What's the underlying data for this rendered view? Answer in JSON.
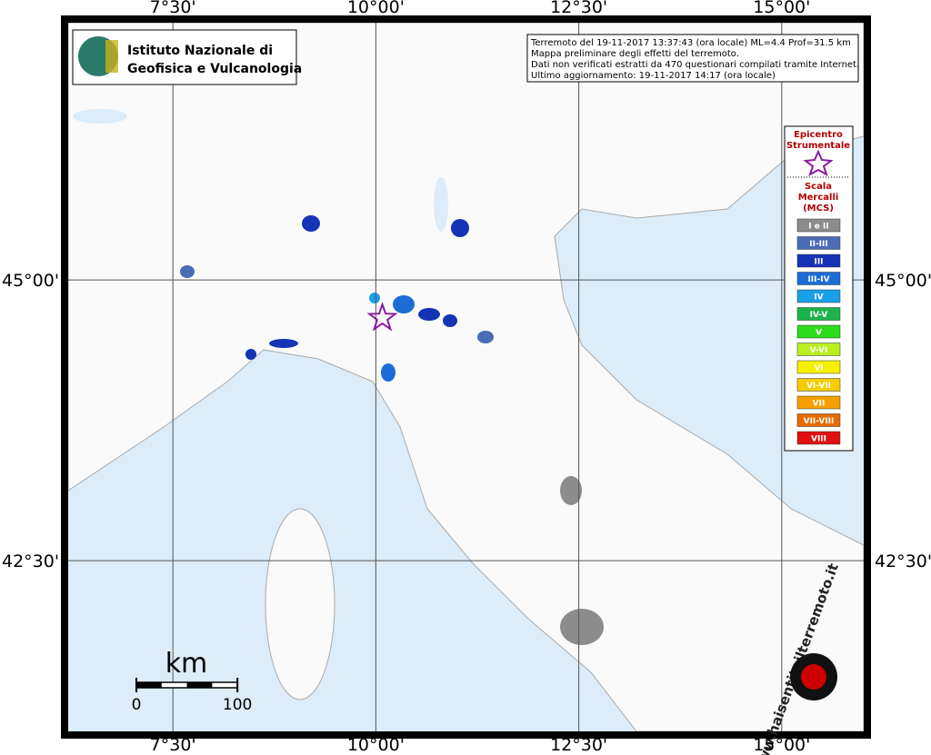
{
  "header": {
    "logo_lines": [
      "Istituto Nazionale di",
      "Geofisica e Vulcanologia"
    ]
  },
  "info": [
    "Terremoto del 19-11-2017 13:37:43 (ora locale) ML=4.4 Prof=31.5 km",
    "Mappa preliminare degli effetti del terremoto.",
    "Dati non verificati estratti da 470 questionari compilati tramite Internet.",
    "Ultimo aggiornamento: 19-11-2017 14:17 (ora locale)"
  ],
  "map": {
    "lon_range": [
      6.21,
      16.01
    ],
    "lat_range": [
      40.98,
      47.29
    ],
    "lon_ticks": [
      {
        "value": 7.5,
        "label": "7°30'"
      },
      {
        "value": 10,
        "label": "10°00'"
      },
      {
        "value": 12.5,
        "label": "12°30'"
      },
      {
        "value": 15,
        "label": "15°00'"
      }
    ],
    "lat_ticks": [
      {
        "value": 45,
        "label": "45°00'"
      },
      {
        "value": 42.5,
        "label": "42°30'"
      }
    ],
    "epicenter": {
      "lon": 10.08,
      "lat": 44.66,
      "color": "#8a1aa0"
    }
  },
  "legend": {
    "epicenter_title": [
      "Epicentro",
      "Strumentale"
    ],
    "scale_title": [
      "Scala",
      "Mercalli",
      "(MCS)"
    ],
    "levels": [
      {
        "label": "I e II",
        "color": "#8c8c8c"
      },
      {
        "label": "II-III",
        "color": "#4a6cb5"
      },
      {
        "label": "III",
        "color": "#1533b5"
      },
      {
        "label": "III-IV",
        "color": "#1c6cd6"
      },
      {
        "label": "IV",
        "color": "#18a0e8"
      },
      {
        "label": "IV-V",
        "color": "#1db34a"
      },
      {
        "label": "V",
        "color": "#2cdc1a"
      },
      {
        "label": "V-VI",
        "color": "#b8f020"
      },
      {
        "label": "VI",
        "color": "#f5f000"
      },
      {
        "label": "VI-VII",
        "color": "#f5cc00"
      },
      {
        "label": "VII",
        "color": "#f5a000"
      },
      {
        "label": "VII-VIII",
        "color": "#e86a00"
      },
      {
        "label": "VIII",
        "color": "#e01010"
      }
    ]
  },
  "scale_bar": {
    "unit": "km",
    "ticks": [
      0,
      100
    ]
  },
  "watermark": "www.haisentitoilterremoto.it"
}
